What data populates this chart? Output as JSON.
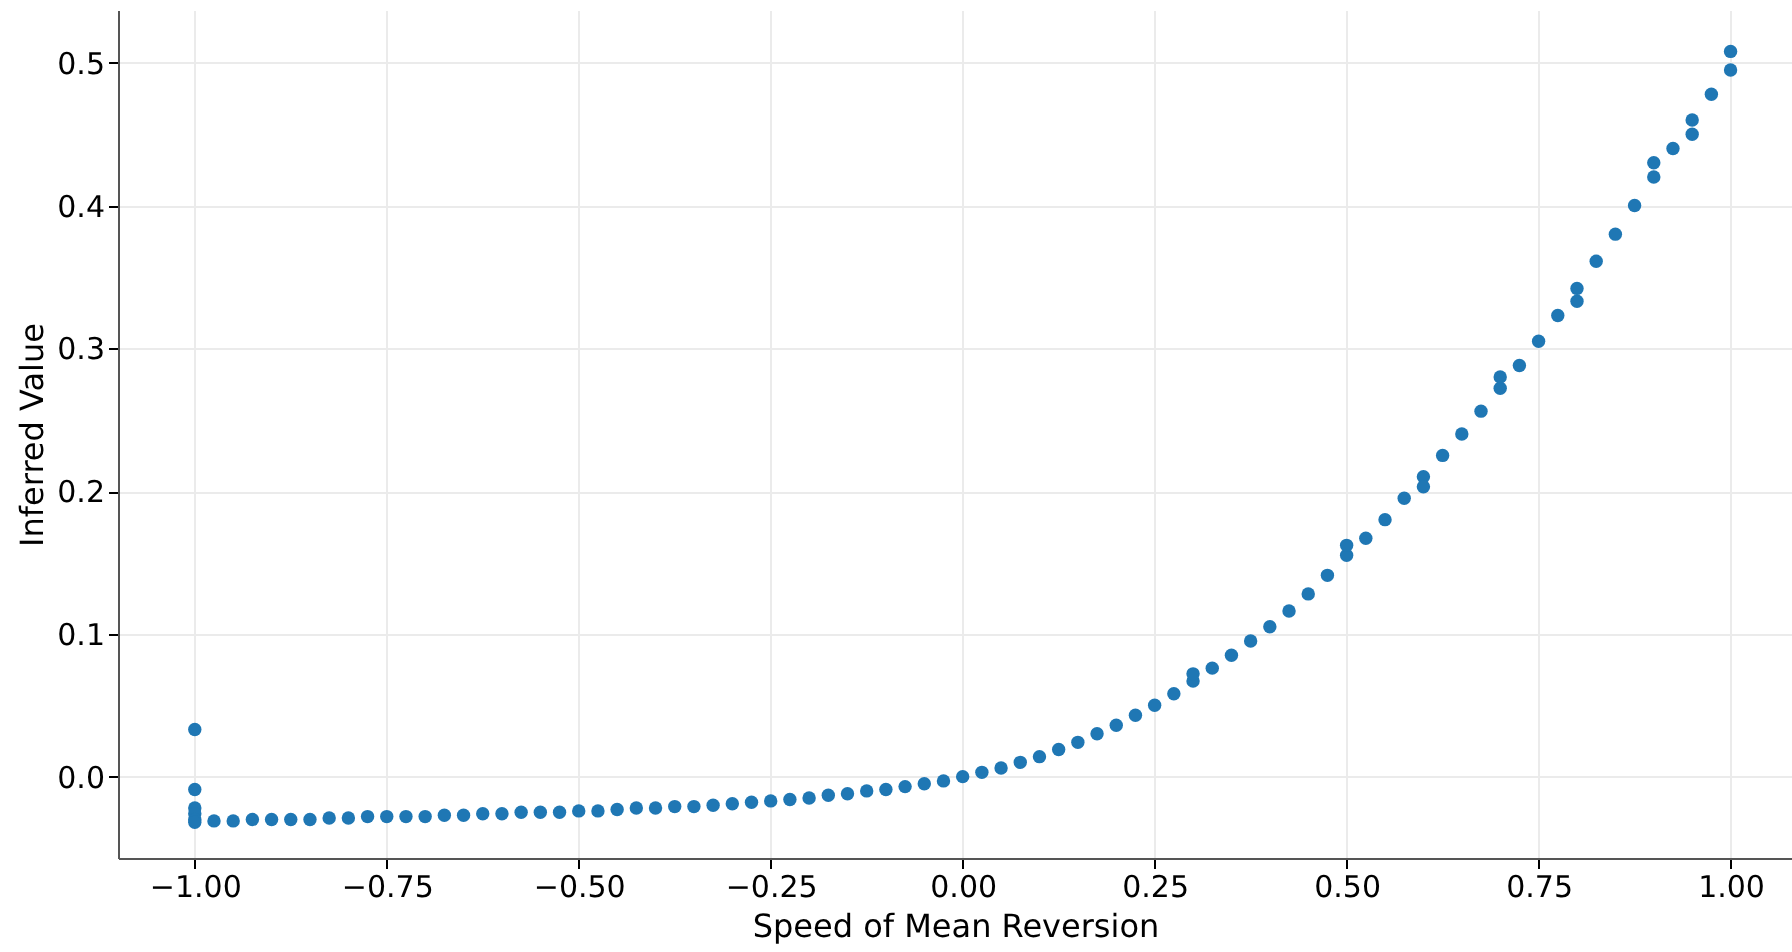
{
  "chart_data": {
    "type": "scatter",
    "xlabel": "Speed of Mean Reversion",
    "ylabel": "Inferred Value",
    "xlim": [
      -1.1,
      1.08
    ],
    "ylim": [
      -0.057,
      0.537
    ],
    "xticks": [
      {
        "value": -1.0,
        "label": "−1.00"
      },
      {
        "value": -0.75,
        "label": "−0.75"
      },
      {
        "value": -0.5,
        "label": "−0.50"
      },
      {
        "value": -0.25,
        "label": "−0.25"
      },
      {
        "value": 0.0,
        "label": "0.00"
      },
      {
        "value": 0.25,
        "label": "0.25"
      },
      {
        "value": 0.5,
        "label": "0.50"
      },
      {
        "value": 0.75,
        "label": "0.75"
      },
      {
        "value": 1.0,
        "label": "1.00"
      }
    ],
    "yticks": [
      {
        "value": 0.0,
        "label": "0.0"
      },
      {
        "value": 0.1,
        "label": "0.1"
      },
      {
        "value": 0.2,
        "label": "0.2"
      },
      {
        "value": 0.3,
        "label": "0.3"
      },
      {
        "value": 0.4,
        "label": "0.4"
      },
      {
        "value": 0.5,
        "label": "0.5"
      }
    ],
    "grid": true,
    "marker": "circle",
    "series": [
      {
        "color": "#1f77b4",
        "x": [
          -1.0,
          -1.0,
          -1.0,
          -1.0,
          -1.0,
          -1.0,
          -0.975,
          -0.95,
          -0.925,
          -0.9,
          -0.875,
          -0.85,
          -0.825,
          -0.8,
          -0.775,
          -0.75,
          -0.725,
          -0.7,
          -0.675,
          -0.65,
          -0.625,
          -0.6,
          -0.575,
          -0.55,
          -0.525,
          -0.5,
          -0.475,
          -0.45,
          -0.425,
          -0.4,
          -0.375,
          -0.35,
          -0.325,
          -0.3,
          -0.275,
          -0.25,
          -0.225,
          -0.2,
          -0.175,
          -0.15,
          -0.125,
          -0.1,
          -0.075,
          -0.05,
          -0.025,
          0.0,
          0.025,
          0.05,
          0.075,
          0.1,
          0.125,
          0.15,
          0.175,
          0.2,
          0.225,
          0.25,
          0.275,
          0.3,
          0.3,
          0.325,
          0.35,
          0.375,
          0.4,
          0.425,
          0.45,
          0.475,
          0.5,
          0.5,
          0.525,
          0.55,
          0.575,
          0.6,
          0.6,
          0.625,
          0.65,
          0.675,
          0.7,
          0.7,
          0.725,
          0.75,
          0.775,
          0.8,
          0.8,
          0.825,
          0.85,
          0.875,
          0.9,
          0.9,
          0.925,
          0.95,
          0.95,
          0.975,
          1.0,
          1.0
        ],
        "values": [
          0.033,
          -0.009,
          -0.022,
          -0.026,
          -0.03,
          -0.032,
          -0.031,
          -0.031,
          -0.03,
          -0.03,
          -0.03,
          -0.03,
          -0.029,
          -0.029,
          -0.028,
          -0.028,
          -0.028,
          -0.028,
          -0.027,
          -0.027,
          -0.026,
          -0.026,
          -0.025,
          -0.025,
          -0.025,
          -0.024,
          -0.024,
          -0.023,
          -0.022,
          -0.022,
          -0.021,
          -0.021,
          -0.02,
          -0.019,
          -0.018,
          -0.017,
          -0.016,
          -0.015,
          -0.013,
          -0.012,
          -0.01,
          -0.009,
          -0.007,
          -0.005,
          -0.003,
          0.0,
          0.003,
          0.006,
          0.01,
          0.014,
          0.019,
          0.024,
          0.03,
          0.036,
          0.043,
          0.05,
          0.058,
          0.067,
          0.072,
          0.076,
          0.085,
          0.095,
          0.105,
          0.116,
          0.128,
          0.141,
          0.155,
          0.162,
          0.167,
          0.18,
          0.195,
          0.21,
          0.203,
          0.225,
          0.24,
          0.256,
          0.272,
          0.28,
          0.288,
          0.305,
          0.323,
          0.342,
          0.333,
          0.361,
          0.38,
          0.4,
          0.42,
          0.43,
          0.44,
          0.46,
          0.45,
          0.478,
          0.495,
          0.508
        ]
      }
    ]
  }
}
